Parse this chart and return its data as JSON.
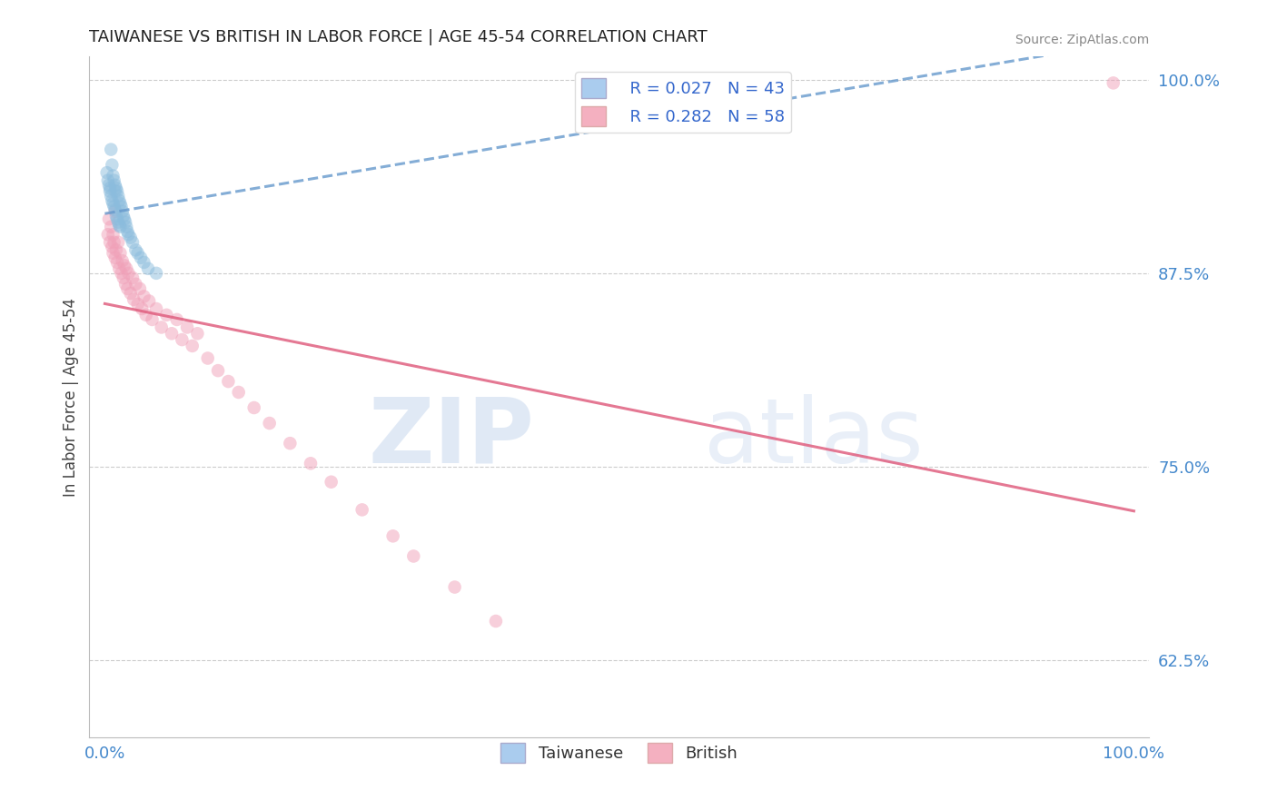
{
  "title": "TAIWANESE VS BRITISH IN LABOR FORCE | AGE 45-54 CORRELATION CHART",
  "source": "Source: ZipAtlas.com",
  "ylabel": "In Labor Force | Age 45-54",
  "R_taiwanese": 0.027,
  "N_taiwanese": 43,
  "R_british": 0.282,
  "N_british": 58,
  "color_taiwanese": "#8BBCDD",
  "color_british": "#F0A0B8",
  "color_taiwanese_line": "#6699CC",
  "color_british_line": "#E06080",
  "legend_box_taiwanese": "#AACCEE",
  "legend_box_british": "#F4B0C0",
  "title_color": "#222222",
  "axis_label_color": "#444444",
  "tick_label_color": "#4488CC",
  "grid_color": "#CCCCCC",
  "watermark_zip": "ZIP",
  "watermark_atlas": "atlas",
  "taiwanese_x": [
    0.002,
    0.003,
    0.004,
    0.005,
    0.005,
    0.006,
    0.006,
    0.007,
    0.007,
    0.008,
    0.008,
    0.009,
    0.009,
    0.01,
    0.01,
    0.01,
    0.011,
    0.011,
    0.012,
    0.012,
    0.013,
    0.013,
    0.014,
    0.014,
    0.015,
    0.015,
    0.016,
    0.017,
    0.018,
    0.019,
    0.02,
    0.021,
    0.022,
    0.023,
    0.025,
    0.027,
    0.03,
    0.032,
    0.035,
    0.038,
    0.042,
    0.05,
    0.48
  ],
  "taiwanese_y": [
    0.94,
    0.935,
    0.932,
    0.93,
    0.928,
    0.955,
    0.925,
    0.945,
    0.922,
    0.938,
    0.92,
    0.935,
    0.918,
    0.932,
    0.928,
    0.916,
    0.93,
    0.912,
    0.928,
    0.91,
    0.925,
    0.908,
    0.922,
    0.906,
    0.92,
    0.905,
    0.918,
    0.915,
    0.912,
    0.91,
    0.908,
    0.905,
    0.902,
    0.9,
    0.898,
    0.895,
    0.89,
    0.888,
    0.885,
    0.882,
    0.878,
    0.875,
    0.985
  ],
  "british_x": [
    0.003,
    0.004,
    0.005,
    0.006,
    0.007,
    0.008,
    0.008,
    0.009,
    0.01,
    0.01,
    0.011,
    0.012,
    0.013,
    0.014,
    0.015,
    0.016,
    0.017,
    0.018,
    0.019,
    0.02,
    0.021,
    0.022,
    0.023,
    0.025,
    0.027,
    0.028,
    0.03,
    0.032,
    0.034,
    0.036,
    0.038,
    0.04,
    0.043,
    0.046,
    0.05,
    0.055,
    0.06,
    0.065,
    0.07,
    0.075,
    0.08,
    0.085,
    0.09,
    0.1,
    0.11,
    0.12,
    0.13,
    0.145,
    0.16,
    0.18,
    0.2,
    0.22,
    0.25,
    0.28,
    0.3,
    0.34,
    0.38,
    0.98
  ],
  "british_y": [
    0.9,
    0.91,
    0.895,
    0.905,
    0.892,
    0.9,
    0.888,
    0.895,
    0.915,
    0.885,
    0.89,
    0.882,
    0.895,
    0.878,
    0.888,
    0.875,
    0.883,
    0.872,
    0.88,
    0.868,
    0.878,
    0.865,
    0.875,
    0.862,
    0.872,
    0.858,
    0.868,
    0.855,
    0.865,
    0.852,
    0.86,
    0.848,
    0.857,
    0.845,
    0.852,
    0.84,
    0.848,
    0.836,
    0.845,
    0.832,
    0.84,
    0.828,
    0.836,
    0.82,
    0.812,
    0.805,
    0.798,
    0.788,
    0.778,
    0.765,
    0.752,
    0.74,
    0.722,
    0.705,
    0.692,
    0.672,
    0.65,
    0.998
  ],
  "ytick_values": [
    0.625,
    0.75,
    0.875,
    1.0
  ],
  "ytick_labels": [
    "62.5%",
    "75.0%",
    "87.5%",
    "100.0%"
  ],
  "xtick_values": [
    0.0,
    1.0
  ],
  "xtick_labels": [
    "0.0%",
    "100.0%"
  ],
  "ymin": 0.575,
  "ymax": 1.015,
  "xmin": -0.015,
  "xmax": 1.015,
  "marker_size": 110,
  "marker_alpha": 0.5,
  "line_width": 2.2
}
